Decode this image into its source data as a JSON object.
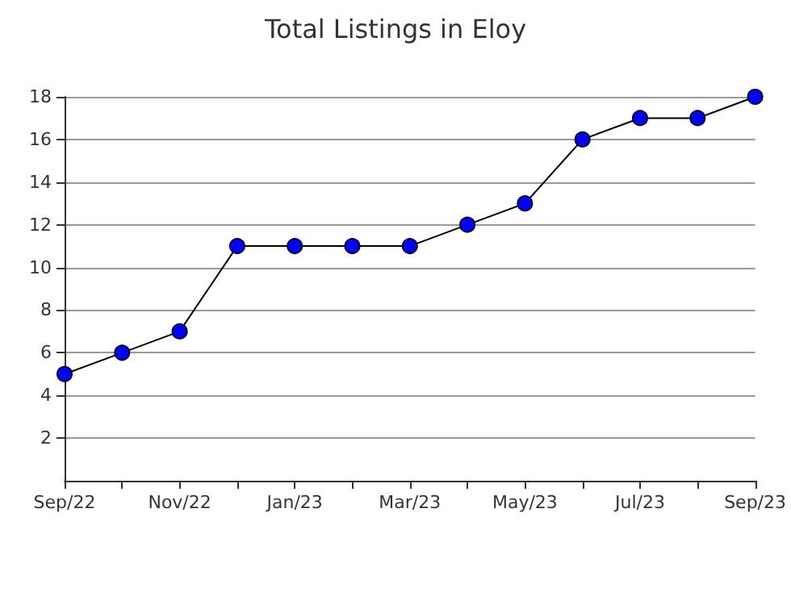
{
  "chart_data": {
    "type": "line",
    "title": "Total Listings in Eloy",
    "categories": [
      "Sep/22",
      null,
      "Nov/22",
      null,
      "Jan/23",
      null,
      "Mar/23",
      null,
      "May/23",
      null,
      "Jul/23",
      null,
      "Sep/23"
    ],
    "series": [
      {
        "color": "#0000ff",
        "values": [
          5,
          6,
          7,
          11,
          11,
          11,
          11,
          12,
          13,
          16,
          17,
          17,
          18
        ]
      }
    ],
    "ylim": [
      0,
      18
    ],
    "yticks": [
      2,
      4,
      6,
      8,
      10,
      12,
      14,
      16,
      18
    ],
    "grid": "y",
    "marker": "circle",
    "line_style": "solid"
  }
}
